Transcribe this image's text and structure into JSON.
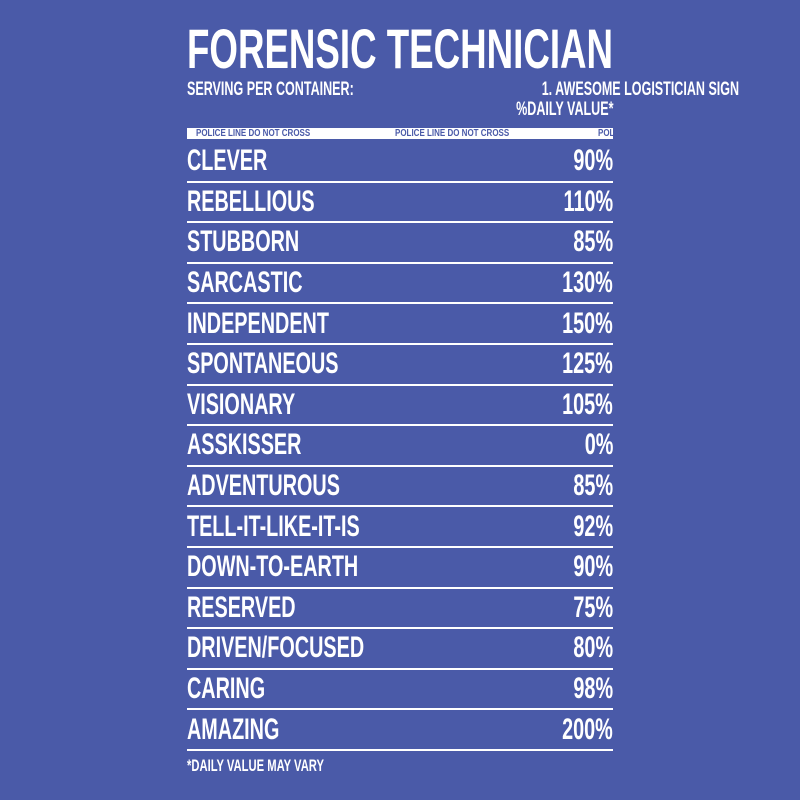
{
  "title": "FORENSIC TECHNICIAN",
  "serving_label": "SERVING PER CONTAINER:",
  "serving_value": "1. AWESOME LOGISTICIAN SIGN",
  "daily_value_header": "%DAILY VALUE*",
  "tape_text": [
    "POLICE LINE DO NOT CROSS",
    "POLICE LINE DO NOT CROSS",
    "POLICE LINE DO NOT CROSS"
  ],
  "rows": [
    {
      "label": "CLEVER",
      "value": "90%"
    },
    {
      "label": "REBELLIOUS",
      "value": "110%"
    },
    {
      "label": "STUBBORN",
      "value": "85%"
    },
    {
      "label": "SARCASTIC",
      "value": "130%"
    },
    {
      "label": "INDEPENDENT",
      "value": "150%"
    },
    {
      "label": "SPONTANEOUS",
      "value": "125%"
    },
    {
      "label": "VISIONARY",
      "value": "105%"
    },
    {
      "label": "ASSKISSER",
      "value": "0%"
    },
    {
      "label": "ADVENTUROUS",
      "value": "85%"
    },
    {
      "label": "TELL-IT-LIKE-IT-IS",
      "value": "92%"
    },
    {
      "label": "DOWN-TO-EARTH",
      "value": "90%"
    },
    {
      "label": "RESERVED",
      "value": "75%"
    },
    {
      "label": "DRIVEN/FOCUSED",
      "value": "80%"
    },
    {
      "label": "CARING",
      "value": "98%"
    },
    {
      "label": "AMAZING",
      "value": "200%"
    }
  ],
  "footnote": "*DAILY VALUE MAY VARY",
  "colors": {
    "background": "#4a5aa8",
    "text": "#ffffff"
  }
}
